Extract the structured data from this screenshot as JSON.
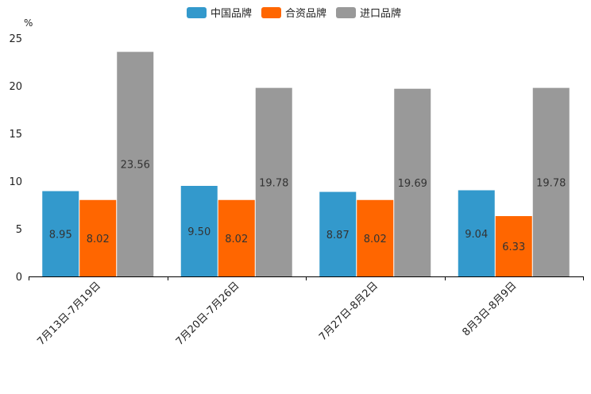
{
  "chart_data": {
    "type": "bar",
    "title": "",
    "xlabel": "",
    "ylabel": "%",
    "ylim": [
      0,
      25
    ],
    "yticks": [
      0,
      5,
      10,
      15,
      20,
      25
    ],
    "grid": false,
    "legend_position": "top-center",
    "categories": [
      "7月13日-7月19日",
      "7月20日-7月26日",
      "7月27日-8月2日",
      "8月3日-8月9日"
    ],
    "series": [
      {
        "name": "中国品牌",
        "color": "#3399cc",
        "values": [
          8.95,
          9.5,
          8.87,
          9.04
        ]
      },
      {
        "name": "合资品牌",
        "color": "#ff6600",
        "values": [
          8.02,
          8.02,
          8.02,
          6.33
        ]
      },
      {
        "name": "进口品牌",
        "color": "#999999",
        "values": [
          23.56,
          19.78,
          19.69,
          19.78
        ]
      }
    ]
  }
}
